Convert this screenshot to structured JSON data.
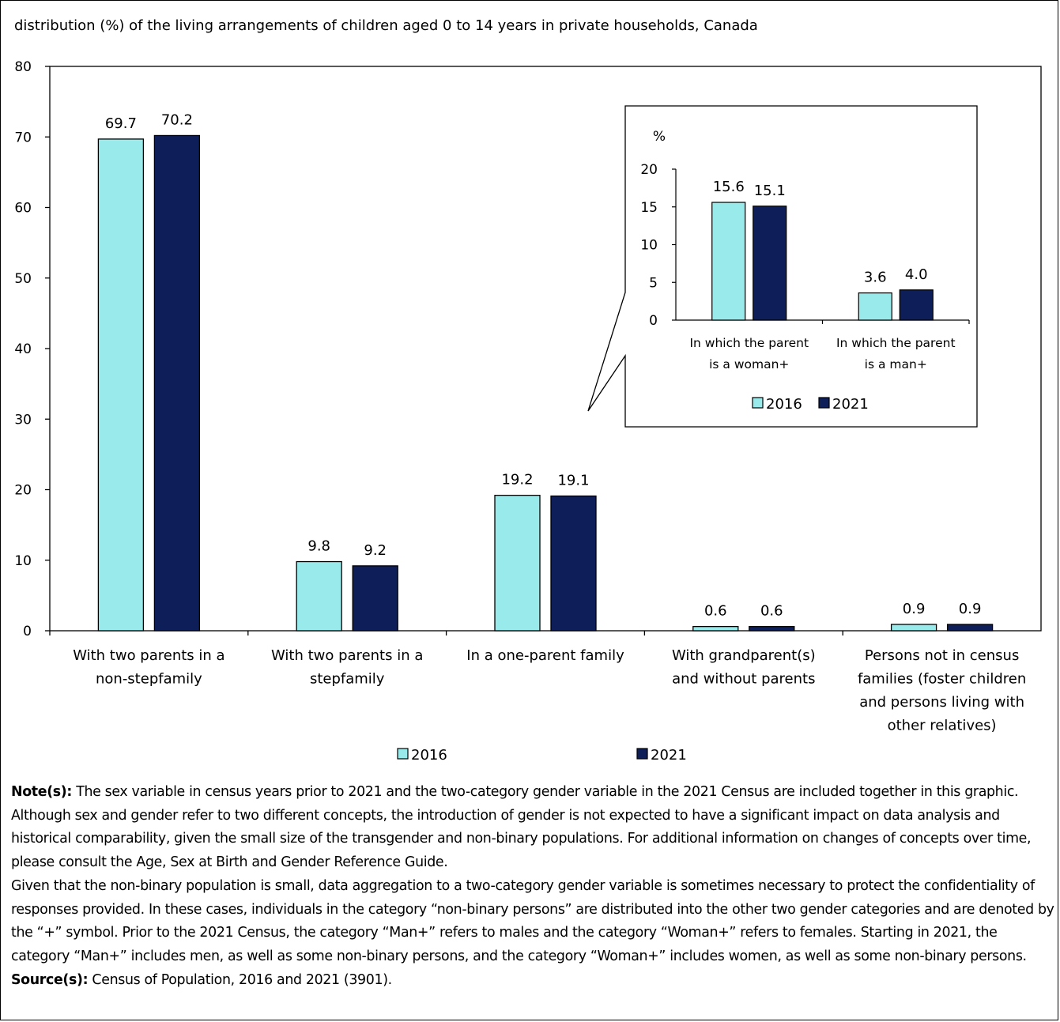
{
  "chart_data": [
    {
      "type": "bar",
      "title": "distribution (%) of the living arrangements of children aged 0 to 14 years in private households, Canada",
      "ylim": [
        0,
        80
      ],
      "yticks": [
        0,
        10,
        20,
        30,
        40,
        50,
        60,
        70,
        80
      ],
      "categories": [
        [
          "With two parents in a",
          "non-stepfamily"
        ],
        [
          "With two parents in a",
          "stepfamily"
        ],
        [
          "In a one-parent family"
        ],
        [
          "With grandparent(s)",
          "and without parents"
        ],
        [
          "Persons not in census",
          "families (foster children",
          "and persons living with",
          "other relatives)"
        ]
      ],
      "series": [
        {
          "name": "2016",
          "color": "#99ebeb",
          "values": [
            69.7,
            9.8,
            19.2,
            0.6,
            0.9
          ]
        },
        {
          "name": "2021",
          "color": "#0e1e59",
          "values": [
            70.2,
            9.2,
            19.1,
            0.6,
            0.9
          ]
        }
      ],
      "data_labels": true,
      "legend": "bottom-center",
      "grid": false
    },
    {
      "type": "bar",
      "inset_of": "In a one-parent family",
      "ylabel": "%",
      "ylim": [
        0,
        20
      ],
      "yticks": [
        0,
        5,
        10,
        15,
        20
      ],
      "categories": [
        [
          "In which the parent",
          "is a woman+"
        ],
        [
          "In which the parent",
          "is a man+"
        ]
      ],
      "series": [
        {
          "name": "2016",
          "color": "#99ebeb",
          "values": [
            15.6,
            3.6
          ]
        },
        {
          "name": "2021",
          "color": "#0e1e59",
          "values": [
            15.1,
            4.0
          ]
        }
      ],
      "data_labels": true,
      "legend": "bottom-center",
      "grid": false
    }
  ],
  "notes": {
    "note_label": "Note(s):",
    "note_text": " The sex variable in census years prior to 2021 and the two-category gender variable in the 2021 Census are included together in this graphic. Although sex and gender refer to two different concepts, the introduction of gender is not expected to have a significant impact on data analysis and historical comparability, given the small size of the transgender and non-binary populations. For additional information on changes of concepts over time, please consult the Age, Sex at Birth and Gender Reference Guide.",
    "note_text_2": "Given that the non-binary population is small, data aggregation to a two-category gender variable is sometimes necessary to protect the confidentiality of responses provided. In these cases, individuals in the category “non-binary persons” are distributed into the other two gender categories and are denoted by the “+” symbol. Prior to the 2021 Census, the category “Man+” refers to males and the category “Woman+” refers to females. Starting in 2021, the category “Man+” includes men, as well as some non-binary persons, and the category “Woman+” includes women, as well as some non-binary persons.",
    "source_label": "Source(s):",
    "source_text": " Census of Population, 2016 and 2021 (3901)."
  }
}
